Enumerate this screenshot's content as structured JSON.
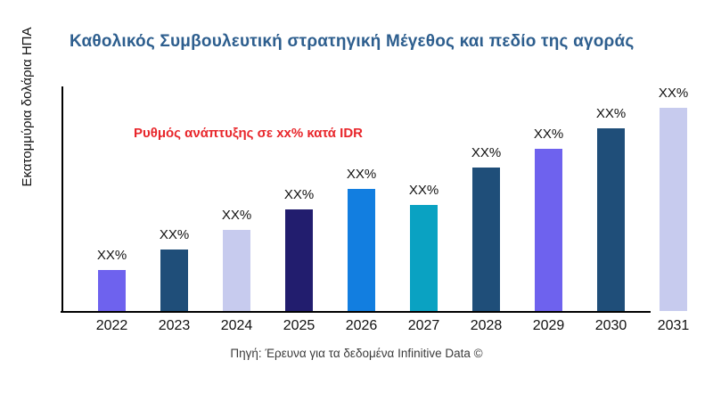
{
  "title": "Καθολικός Συμβουλευτική στρατηγική Μέγεθος και πεδίο της αγοράς",
  "y_axis_label": "Εκατομμύρια δολάρια ΗΠΑ",
  "annotation": "Ρυθμός ανάπτυξης σε xx% κατά IDR",
  "footer": "Πηγή: Έρευνα για τα δεδομένα Infinitive Data ©",
  "colors": {
    "title_text": "#2d5e8e",
    "annotation_text": "#e8262b",
    "axis": "#000000",
    "label_text": "#111111"
  },
  "chart_data": {
    "type": "bar",
    "title": "Καθολικός Συμβουλευτική στρατηγική Μέγεθος και πεδίο της αγοράς",
    "xlabel": "",
    "ylabel": "Εκατομμύρια δολάρια ΗΠΑ",
    "categories": [
      "2022",
      "2023",
      "2024",
      "2025",
      "2026",
      "2027",
      "2028",
      "2029",
      "2030",
      "2031"
    ],
    "value_labels": [
      "XX%",
      "XX%",
      "XX%",
      "XX%",
      "XX%",
      "XX%",
      "XX%",
      "XX%",
      "XX%",
      "XX%"
    ],
    "values_estimated_relative": [
      46,
      69,
      91,
      114,
      137,
      119,
      161,
      182,
      205,
      228
    ],
    "bar_colors": [
      "#6e62ee",
      "#1f4e79",
      "#c7cbee",
      "#221d6e",
      "#127ee0",
      "#0aa2c2",
      "#1f4e79",
      "#6e62ee",
      "#1f4e79",
      "#c7cbee"
    ],
    "annotation": "Ρυθμός ανάπτυξης σε xx% κατά IDR",
    "grid": false,
    "legend": false,
    "notes": "Numeric values not shown in source; all bars labeled XX%. Heights are pixel-relative estimates."
  }
}
